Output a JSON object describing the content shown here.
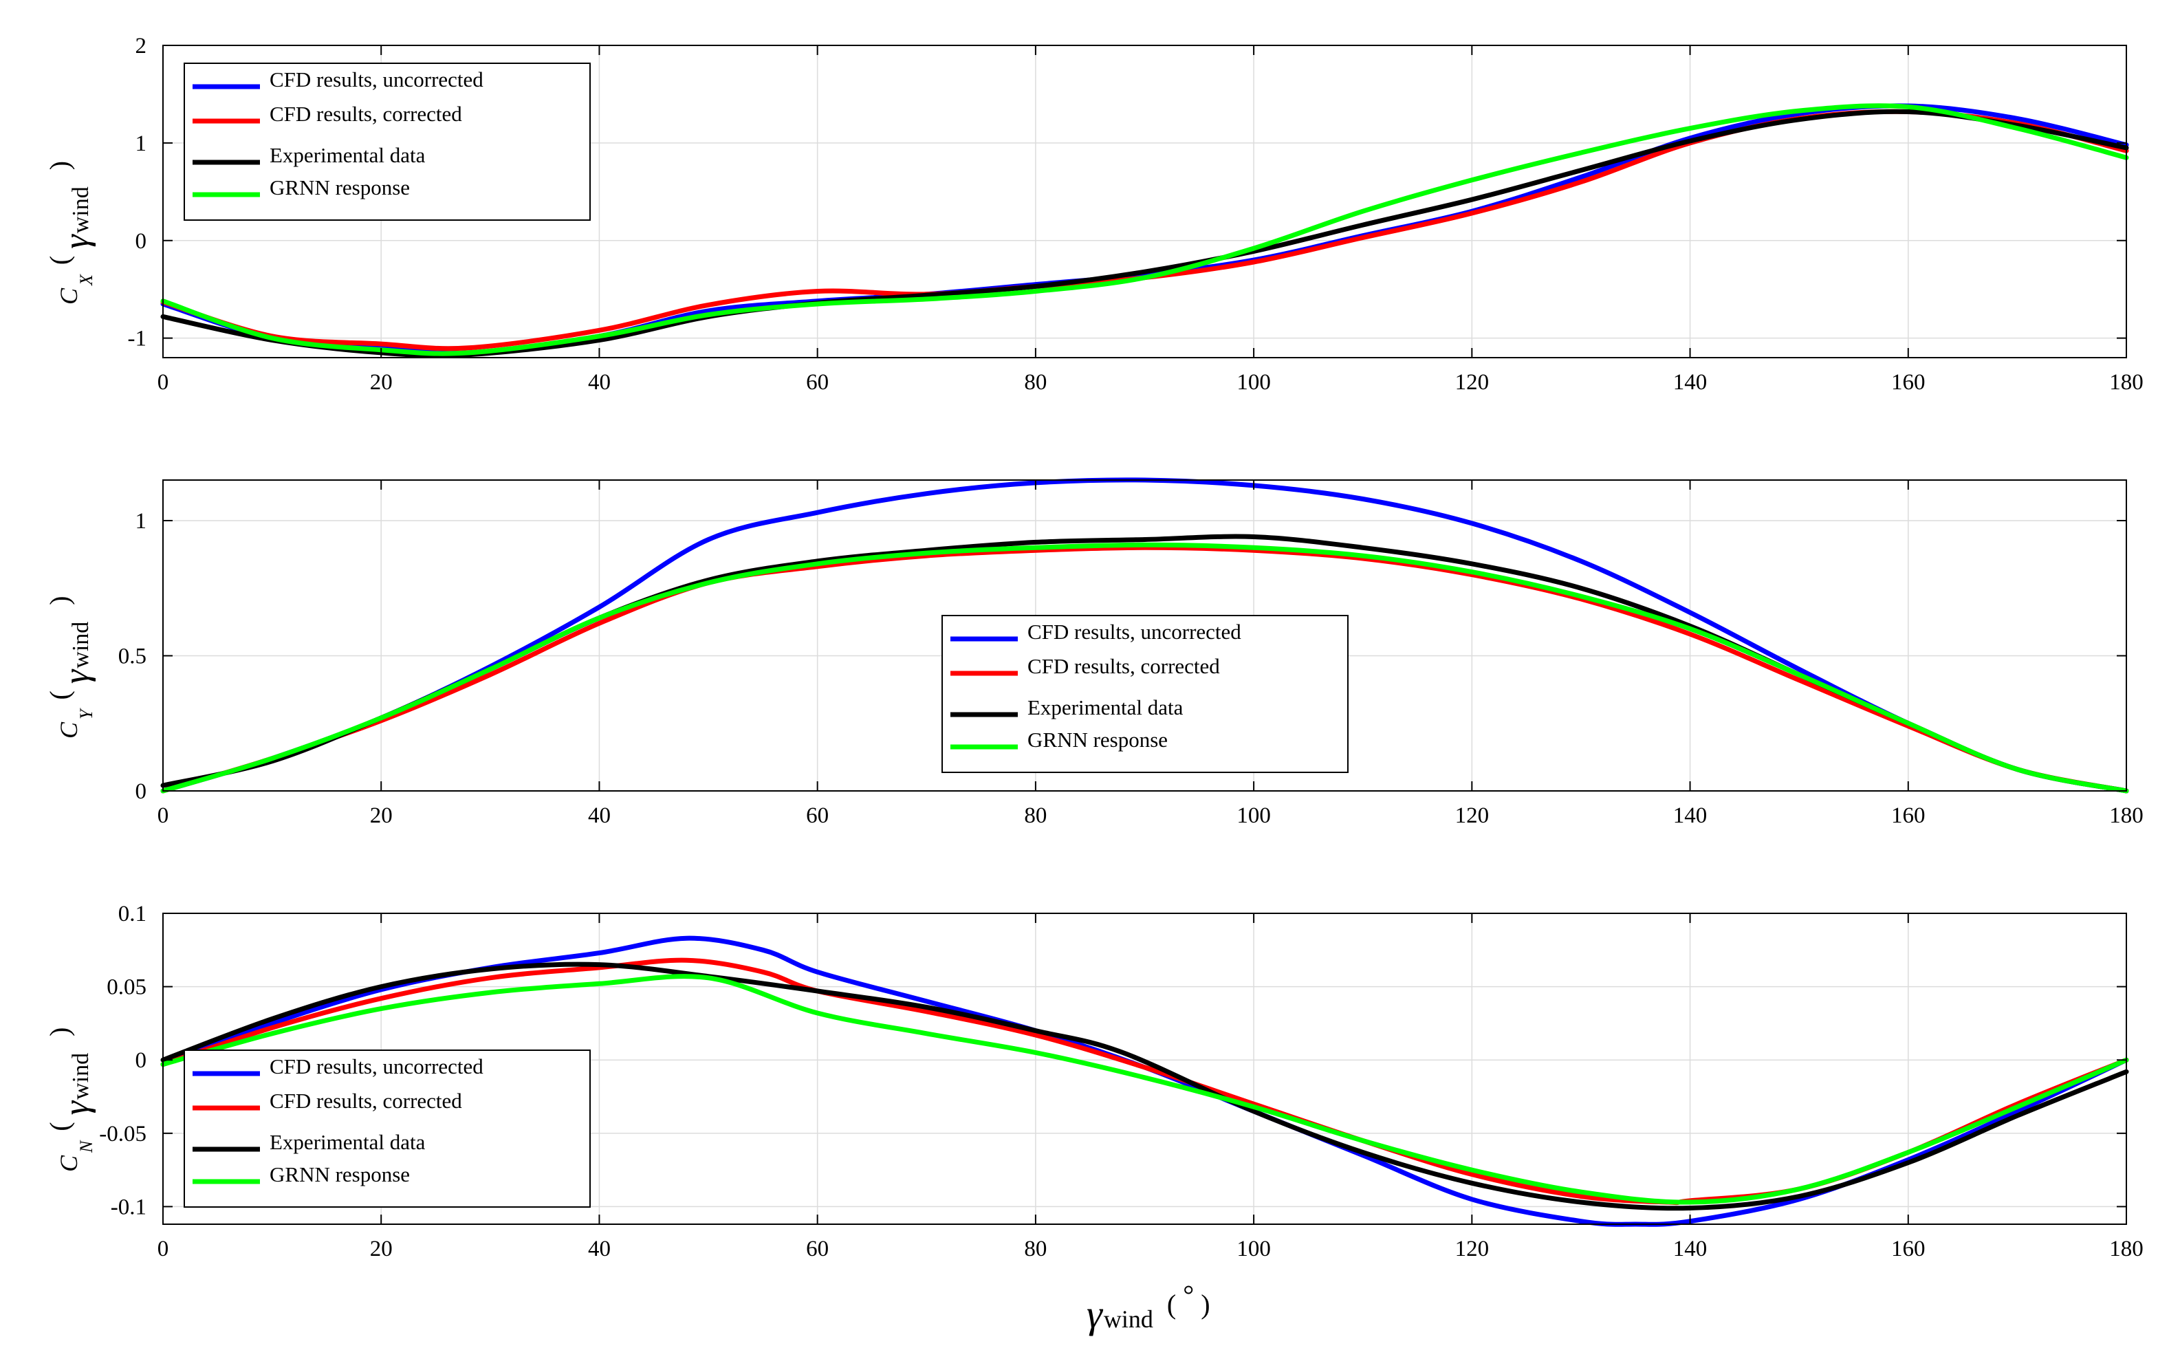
{
  "chart_data": [
    {
      "type": "line",
      "title": "",
      "xlabel": "",
      "ylabel": "C_X(γ_wind)",
      "ylabel_parts": {
        "main": "C",
        "sub": "X",
        "open": "(",
        "gamma": "γ",
        "wind": "wind",
        "close": ")"
      },
      "xlim": [
        0,
        180
      ],
      "ylim": [
        -1.2,
        2
      ],
      "xticks": [
        "0",
        "20",
        "40",
        "60",
        "80",
        "100",
        "120",
        "140",
        "160",
        "180"
      ],
      "yticks": [
        "-1",
        "0",
        "1",
        "2"
      ],
      "grid": true,
      "legend_position": "top-left",
      "series": [
        {
          "name": "CFD results, uncorrected",
          "color": "#0000ff",
          "x": [
            0,
            10,
            20,
            28,
            40,
            50,
            60,
            70,
            80,
            90,
            100,
            110,
            120,
            130,
            140,
            150,
            160,
            170,
            180
          ],
          "y": [
            -0.65,
            -1.0,
            -1.1,
            -1.15,
            -0.98,
            -0.72,
            -0.62,
            -0.55,
            -0.45,
            -0.35,
            -0.2,
            0.05,
            0.3,
            0.65,
            1.05,
            1.3,
            1.38,
            1.25,
            0.98
          ]
        },
        {
          "name": "CFD results, corrected",
          "color": "#ff0000",
          "x": [
            0,
            10,
            20,
            28,
            40,
            50,
            60,
            70,
            80,
            90,
            100,
            110,
            120,
            130,
            140,
            150,
            160,
            170,
            180
          ],
          "y": [
            -0.63,
            -0.98,
            -1.06,
            -1.1,
            -0.92,
            -0.66,
            -0.52,
            -0.55,
            -0.47,
            -0.38,
            -0.22,
            0.03,
            0.28,
            0.6,
            1.0,
            1.25,
            1.32,
            1.2,
            0.92
          ]
        },
        {
          "name": "Experimental data",
          "color": "#000000",
          "x": [
            0,
            10,
            20,
            28,
            40,
            50,
            60,
            70,
            80,
            90,
            100,
            110,
            120,
            130,
            140,
            150,
            160,
            170,
            180
          ],
          "y": [
            -0.78,
            -1.02,
            -1.15,
            -1.17,
            -1.02,
            -0.78,
            -0.64,
            -0.56,
            -0.47,
            -0.32,
            -0.11,
            0.16,
            0.42,
            0.72,
            1.02,
            1.24,
            1.32,
            1.18,
            0.95
          ]
        },
        {
          "name": "GRNN response",
          "color": "#00ff00",
          "x": [
            0,
            10,
            20,
            28,
            40,
            50,
            60,
            70,
            80,
            90,
            100,
            110,
            120,
            130,
            140,
            150,
            160,
            170,
            180
          ],
          "y": [
            -0.62,
            -1.0,
            -1.12,
            -1.15,
            -0.98,
            -0.76,
            -0.65,
            -0.6,
            -0.52,
            -0.38,
            -0.08,
            0.3,
            0.62,
            0.9,
            1.15,
            1.33,
            1.37,
            1.15,
            0.85
          ]
        }
      ]
    },
    {
      "type": "line",
      "title": "",
      "xlabel": "",
      "ylabel": "C_Y(γ_wind)",
      "ylabel_parts": {
        "main": "C",
        "sub": "Y",
        "open": "(",
        "gamma": "γ",
        "wind": "wind",
        "close": ")"
      },
      "xlim": [
        0,
        180
      ],
      "ylim": [
        0,
        1.15
      ],
      "xticks": [
        "0",
        "20",
        "40",
        "60",
        "80",
        "100",
        "120",
        "140",
        "160",
        "180"
      ],
      "yticks": [
        "0",
        "0.5",
        "1"
      ],
      "grid": true,
      "legend_position": "center",
      "series": [
        {
          "name": "CFD results, uncorrected",
          "color": "#0000ff",
          "x": [
            0,
            10,
            20,
            30,
            40,
            50,
            60,
            70,
            80,
            90,
            100,
            110,
            120,
            130,
            140,
            150,
            160,
            170,
            180
          ],
          "y": [
            0.0,
            0.12,
            0.27,
            0.46,
            0.68,
            0.93,
            1.03,
            1.1,
            1.14,
            1.15,
            1.13,
            1.08,
            0.99,
            0.85,
            0.66,
            0.45,
            0.25,
            0.08,
            0.0
          ]
        },
        {
          "name": "CFD results, corrected",
          "color": "#ff0000",
          "x": [
            0,
            10,
            20,
            30,
            40,
            50,
            60,
            70,
            80,
            90,
            100,
            110,
            120,
            130,
            140,
            150,
            160,
            170,
            180
          ],
          "y": [
            0.0,
            0.12,
            0.26,
            0.43,
            0.62,
            0.77,
            0.83,
            0.87,
            0.89,
            0.9,
            0.89,
            0.86,
            0.8,
            0.71,
            0.58,
            0.41,
            0.24,
            0.08,
            0.0
          ]
        },
        {
          "name": "Experimental data",
          "color": "#000000",
          "x": [
            0,
            10,
            20,
            30,
            40,
            50,
            60,
            70,
            80,
            90,
            100,
            110,
            120,
            130,
            140,
            150,
            160,
            170,
            180
          ],
          "y": [
            0.02,
            0.11,
            0.27,
            0.45,
            0.64,
            0.78,
            0.85,
            0.89,
            0.92,
            0.93,
            0.94,
            0.9,
            0.84,
            0.75,
            0.61,
            0.43,
            0.25,
            0.08,
            0.0
          ]
        },
        {
          "name": "GRNN response",
          "color": "#00ff00",
          "x": [
            0,
            10,
            20,
            30,
            40,
            50,
            60,
            70,
            80,
            90,
            100,
            110,
            120,
            130,
            140,
            150,
            160,
            170,
            180
          ],
          "y": [
            0.0,
            0.12,
            0.27,
            0.45,
            0.64,
            0.77,
            0.84,
            0.88,
            0.9,
            0.91,
            0.9,
            0.87,
            0.81,
            0.72,
            0.6,
            0.43,
            0.25,
            0.08,
            0.0
          ]
        }
      ]
    },
    {
      "type": "line",
      "title": "",
      "xlabel": "γ_wind (°)",
      "xlabel_parts": {
        "gamma": "γ",
        "wind": "wind",
        "open": "(",
        "degree": "°",
        "close": ")"
      },
      "ylabel": "C_N(γ_wind)",
      "ylabel_parts": {
        "main": "C",
        "sub": "N",
        "open": "(",
        "gamma": "γ",
        "wind": "wind",
        "close": ")"
      },
      "xlim": [
        0,
        180
      ],
      "ylim": [
        -0.112,
        0.1
      ],
      "xticks": [
        "0",
        "20",
        "40",
        "60",
        "80",
        "100",
        "120",
        "140",
        "160",
        "180"
      ],
      "yticks": [
        "-0.1",
        "-0.05",
        "0",
        "0.05",
        "0.1"
      ],
      "grid": true,
      "legend_position": "bottom-left",
      "series": [
        {
          "name": "CFD results, uncorrected",
          "color": "#0000ff",
          "x": [
            0,
            10,
            20,
            30,
            40,
            48,
            55,
            60,
            70,
            80,
            90,
            100,
            110,
            120,
            130,
            135,
            140,
            150,
            160,
            170,
            180
          ],
          "y": [
            -0.003,
            0.025,
            0.048,
            0.063,
            0.073,
            0.083,
            0.075,
            0.06,
            0.04,
            0.02,
            -0.005,
            -0.035,
            -0.065,
            -0.095,
            -0.11,
            -0.112,
            -0.11,
            -0.095,
            -0.068,
            -0.035,
            0.0
          ]
        },
        {
          "name": "CFD results, corrected",
          "color": "#ff0000",
          "x": [
            0,
            10,
            20,
            30,
            40,
            48,
            55,
            60,
            70,
            80,
            90,
            100,
            110,
            120,
            130,
            138,
            140,
            150,
            160,
            170,
            180
          ],
          "y": [
            -0.003,
            0.022,
            0.042,
            0.056,
            0.063,
            0.068,
            0.06,
            0.047,
            0.033,
            0.017,
            -0.005,
            -0.03,
            -0.055,
            -0.078,
            -0.093,
            -0.097,
            -0.096,
            -0.088,
            -0.063,
            -0.03,
            0.0
          ]
        },
        {
          "name": "Experimental data",
          "color": "#000000",
          "x": [
            0,
            10,
            20,
            30,
            40,
            50,
            60,
            70,
            80,
            88,
            100,
            110,
            120,
            130,
            140,
            150,
            160,
            170,
            180
          ],
          "y": [
            0.0,
            0.028,
            0.05,
            0.062,
            0.065,
            0.057,
            0.047,
            0.036,
            0.02,
            0.005,
            -0.035,
            -0.063,
            -0.084,
            -0.097,
            -0.101,
            -0.093,
            -0.07,
            -0.038,
            -0.008
          ]
        },
        {
          "name": "GRNN response",
          "color": "#00ff00",
          "x": [
            0,
            10,
            20,
            30,
            40,
            50,
            60,
            70,
            80,
            90,
            100,
            110,
            120,
            130,
            140,
            150,
            160,
            170,
            180
          ],
          "y": [
            -0.003,
            0.018,
            0.035,
            0.046,
            0.052,
            0.056,
            0.032,
            0.018,
            0.005,
            -0.012,
            -0.032,
            -0.055,
            -0.075,
            -0.09,
            -0.097,
            -0.088,
            -0.063,
            -0.032,
            0.0
          ]
        }
      ]
    }
  ]
}
